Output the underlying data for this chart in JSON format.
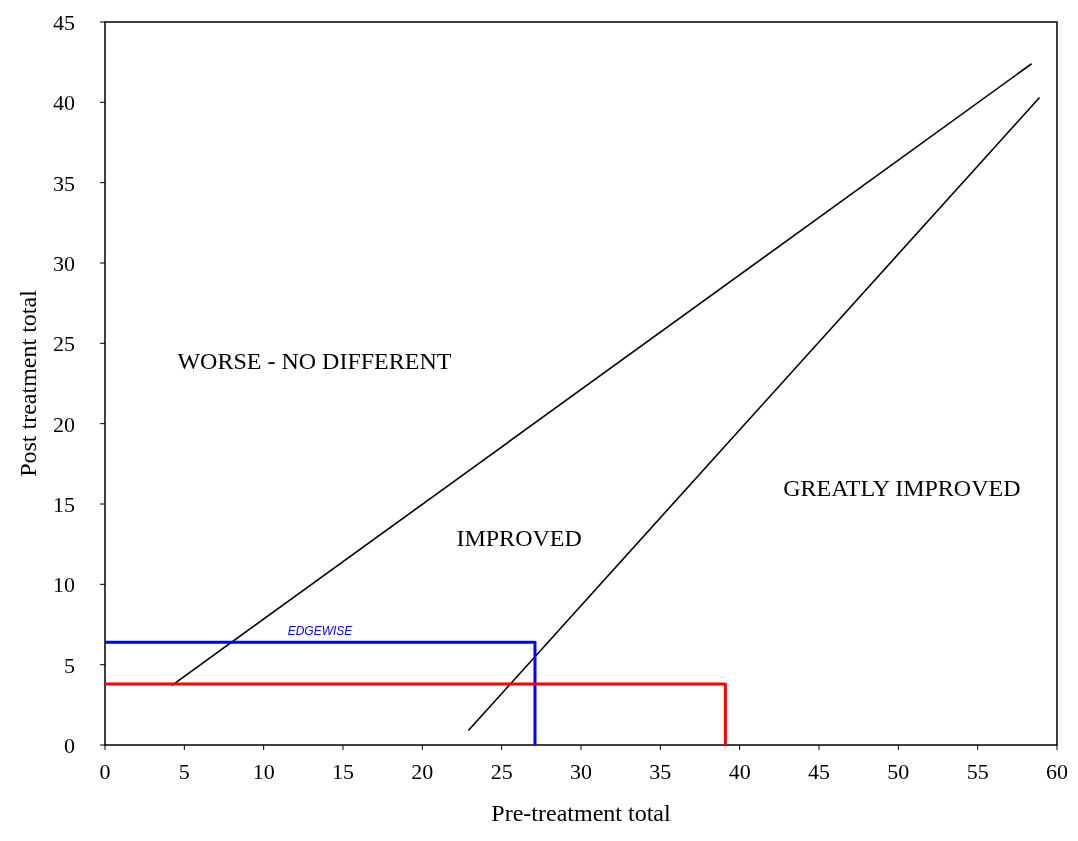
{
  "chart_data": {
    "type": "line",
    "xlabel": "Pre-treatment total",
    "ylabel": "Post treatment total",
    "xlim": [
      0,
      60
    ],
    "xticks": [
      0,
      5,
      10,
      15,
      20,
      25,
      30,
      35,
      40,
      45,
      50,
      55,
      60
    ],
    "ylim": [
      0,
      45
    ],
    "yticks": [
      0,
      5,
      10,
      15,
      20,
      25,
      30,
      35,
      40,
      45
    ],
    "grid": false,
    "marker": "none",
    "line_style": "solid",
    "series": [
      {
        "color": "#000000",
        "x": [
          4.2,
          58.4
        ],
        "values": [
          3.7,
          42.4
        ]
      },
      {
        "color": "#000000",
        "x": [
          22.9,
          58.9
        ],
        "values": [
          0.9,
          40.3
        ]
      },
      {
        "name": "EDGEWISE",
        "color": "#0000ff",
        "x": [
          0,
          27.1,
          27.1
        ],
        "values": [
          6.4,
          6.4,
          0
        ]
      },
      {
        "color": "#ff0000",
        "x": [
          0,
          39.1,
          39.1
        ],
        "values": [
          3.8,
          3.8,
          0
        ]
      }
    ],
    "annotations": [
      "WORSE - NO DIFFERENT",
      "IMPROVED",
      "GREATLY IMPROVED"
    ]
  }
}
